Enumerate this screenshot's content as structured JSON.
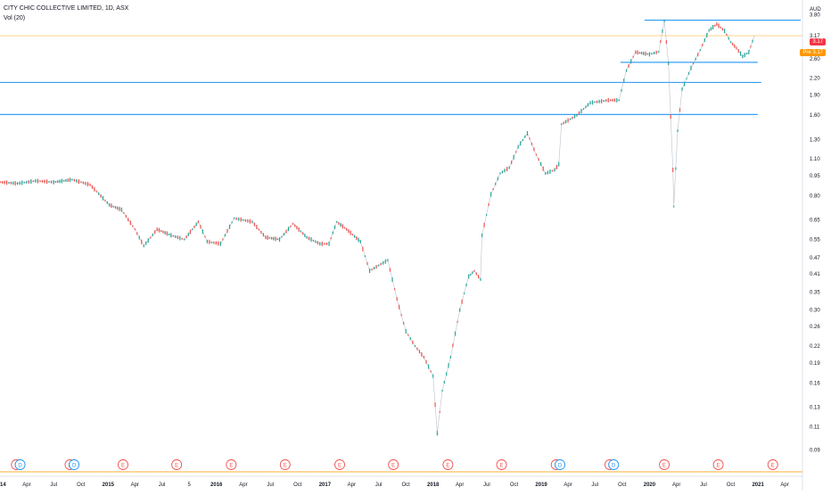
{
  "legend": {
    "symbol": "CITY CHIC COLLECTIVE LIMITED, 1D, ASX",
    "volume": "Vol (20)"
  },
  "price_tag": "3.17",
  "pre_tag": "Pre 3.17",
  "currency": "AUD",
  "colors": {
    "up": "#26a69a",
    "down": "#ef5350",
    "level_line": "#2196f3",
    "price_line": "#ff9800",
    "volume_ma": "#ff9800",
    "earnings_marker": "#ef5350",
    "dividend_marker": "#2196f3"
  },
  "chart_data": {
    "type": "line",
    "title": "CITY CHIC COLLECTIVE LIMITED, 1D, ASX",
    "scale": "log",
    "ylabel": "AUD",
    "ylim": [
      0.08,
      4.05
    ],
    "y_ticks": [
      "4.10",
      "3.80",
      "3.17",
      "2.60",
      "2.20",
      "1.90",
      "1.60",
      "1.30",
      "1.10",
      "0.95",
      "0.80",
      "0.65",
      "0.55",
      "0.47",
      "0.41",
      "0.35",
      "0.30",
      "0.26",
      "0.22",
      "0.19",
      "0.16",
      "0.13",
      "0.11",
      "0.09"
    ],
    "x_ticks": [
      "2014",
      "Apr",
      "Jul",
      "Oct",
      "2015",
      "Apr",
      "Jul",
      "5",
      "2016",
      "Apr",
      "Jul",
      "Oct",
      "2017",
      "Apr",
      "Jul",
      "Oct",
      "2018",
      "Apr",
      "Jul",
      "Oct",
      "2019",
      "Apr",
      "Jul",
      "Oct",
      "2020",
      "Apr",
      "Jul",
      "Oct",
      "2021",
      "Apr"
    ],
    "xlim": [
      "2014-01-01",
      "2021-05-31"
    ],
    "series": [
      {
        "name": "CITY CHIC COLLECTIVE LIMITED",
        "points": [
          [
            "2014-01-02",
            0.9
          ],
          [
            "2014-03-01",
            0.89
          ],
          [
            "2014-05-01",
            0.91
          ],
          [
            "2014-07-01",
            0.9
          ],
          [
            "2014-09-01",
            0.92
          ],
          [
            "2014-11-01",
            0.88
          ],
          [
            "2015-01-05",
            0.74
          ],
          [
            "2015-02-15",
            0.71
          ],
          [
            "2015-04-01",
            0.6
          ],
          [
            "2015-05-01",
            0.52
          ],
          [
            "2015-06-15",
            0.6
          ],
          [
            "2015-08-01",
            0.57
          ],
          [
            "2015-09-15",
            0.55
          ],
          [
            "2015-11-01",
            0.64
          ],
          [
            "2015-12-01",
            0.54
          ],
          [
            "2016-01-15",
            0.53
          ],
          [
            "2016-03-01",
            0.66
          ],
          [
            "2016-05-01",
            0.64
          ],
          [
            "2016-06-15",
            0.56
          ],
          [
            "2016-08-01",
            0.55
          ],
          [
            "2016-09-15",
            0.63
          ],
          [
            "2016-11-01",
            0.56
          ],
          [
            "2016-12-15",
            0.53
          ],
          [
            "2017-01-15",
            0.53
          ],
          [
            "2017-02-10",
            0.64
          ],
          [
            "2017-03-15",
            0.6
          ],
          [
            "2017-05-01",
            0.54
          ],
          [
            "2017-06-01",
            0.42
          ],
          [
            "2017-07-01",
            0.44
          ],
          [
            "2017-08-01",
            0.46
          ],
          [
            "2017-09-01",
            0.33
          ],
          [
            "2017-10-01",
            0.25
          ],
          [
            "2017-11-01",
            0.22
          ],
          [
            "2017-12-01",
            0.2
          ],
          [
            "2018-01-01",
            0.17
          ],
          [
            "2018-01-15",
            0.104
          ],
          [
            "2018-02-01",
            0.15
          ],
          [
            "2018-03-01",
            0.2
          ],
          [
            "2018-04-01",
            0.3
          ],
          [
            "2018-05-01",
            0.4
          ],
          [
            "2018-05-20",
            0.42
          ],
          [
            "2018-06-10",
            0.39
          ],
          [
            "2018-06-15",
            0.57
          ],
          [
            "2018-07-15",
            0.81
          ],
          [
            "2018-08-15",
            0.97
          ],
          [
            "2018-09-15",
            1.02
          ],
          [
            "2018-10-15",
            1.22
          ],
          [
            "2018-11-15",
            1.37
          ],
          [
            "2018-12-15",
            1.14
          ],
          [
            "2019-01-15",
            0.97
          ],
          [
            "2019-02-15",
            1.0
          ],
          [
            "2019-03-01",
            1.05
          ],
          [
            "2019-03-10",
            1.48
          ],
          [
            "2019-05-01",
            1.6
          ],
          [
            "2019-06-15",
            1.78
          ],
          [
            "2019-08-15",
            1.82
          ],
          [
            "2019-09-20",
            1.82
          ],
          [
            "2019-10-15",
            2.35
          ],
          [
            "2019-11-15",
            2.75
          ],
          [
            "2020-01-01",
            2.7
          ],
          [
            "2020-02-01",
            2.76
          ],
          [
            "2020-02-20",
            3.6
          ],
          [
            "2020-03-05",
            2.5
          ],
          [
            "2020-03-20",
            1.0
          ],
          [
            "2020-03-23",
            0.73
          ],
          [
            "2020-04-05",
            1.4
          ],
          [
            "2020-04-20",
            2.0
          ],
          [
            "2020-05-20",
            2.4
          ],
          [
            "2020-06-20",
            2.8
          ],
          [
            "2020-07-20",
            3.32
          ],
          [
            "2020-08-15",
            3.5
          ],
          [
            "2020-09-10",
            3.3
          ],
          [
            "2020-10-01",
            3.0
          ],
          [
            "2020-10-20",
            2.85
          ],
          [
            "2020-11-10",
            2.65
          ],
          [
            "2020-12-01",
            2.75
          ],
          [
            "2020-12-20",
            3.17
          ]
        ]
      }
    ],
    "horizontal_levels": [
      {
        "value": 3.62,
        "start": "2019-12-15",
        "end": "2021-05-25"
      },
      {
        "value": 3.17,
        "start": "2014-01-01",
        "end": "2021-05-31"
      },
      {
        "value": 2.52,
        "start": "2019-09-25",
        "end": "2020-12-31"
      },
      {
        "value": 2.12,
        "start": "2014-01-01",
        "end": "2021-01-12"
      },
      {
        "value": 1.61,
        "start": "2014-01-01",
        "end": "2020-12-31"
      }
    ],
    "events": [
      {
        "label": "E",
        "kind": "earnings",
        "date": "2014-02-25"
      },
      {
        "label": "D",
        "kind": "dividend",
        "date": "2014-03-10"
      },
      {
        "label": "E",
        "kind": "earnings",
        "date": "2014-08-25"
      },
      {
        "label": "D",
        "kind": "dividend",
        "date": "2014-09-08"
      },
      {
        "label": "E",
        "kind": "earnings",
        "date": "2015-02-20"
      },
      {
        "label": "E",
        "kind": "earnings",
        "date": "2015-08-20"
      },
      {
        "label": "E",
        "kind": "earnings",
        "date": "2016-02-20"
      },
      {
        "label": "E",
        "kind": "earnings",
        "date": "2016-08-20"
      },
      {
        "label": "E",
        "kind": "earnings",
        "date": "2017-02-20"
      },
      {
        "label": "E",
        "kind": "earnings",
        "date": "2017-08-20"
      },
      {
        "label": "E",
        "kind": "earnings",
        "date": "2018-02-20"
      },
      {
        "label": "E",
        "kind": "earnings",
        "date": "2018-08-20"
      },
      {
        "label": "E",
        "kind": "earnings",
        "date": "2019-02-20"
      },
      {
        "label": "D",
        "kind": "dividend",
        "date": "2019-03-05"
      },
      {
        "label": "E",
        "kind": "earnings",
        "date": "2019-08-20"
      },
      {
        "label": "D",
        "kind": "dividend",
        "date": "2019-09-02"
      },
      {
        "label": "E",
        "kind": "earnings",
        "date": "2020-02-20"
      },
      {
        "label": "E",
        "kind": "earnings",
        "date": "2020-08-20"
      },
      {
        "label": "E",
        "kind": "earnings",
        "date": "2021-02-20"
      }
    ]
  }
}
